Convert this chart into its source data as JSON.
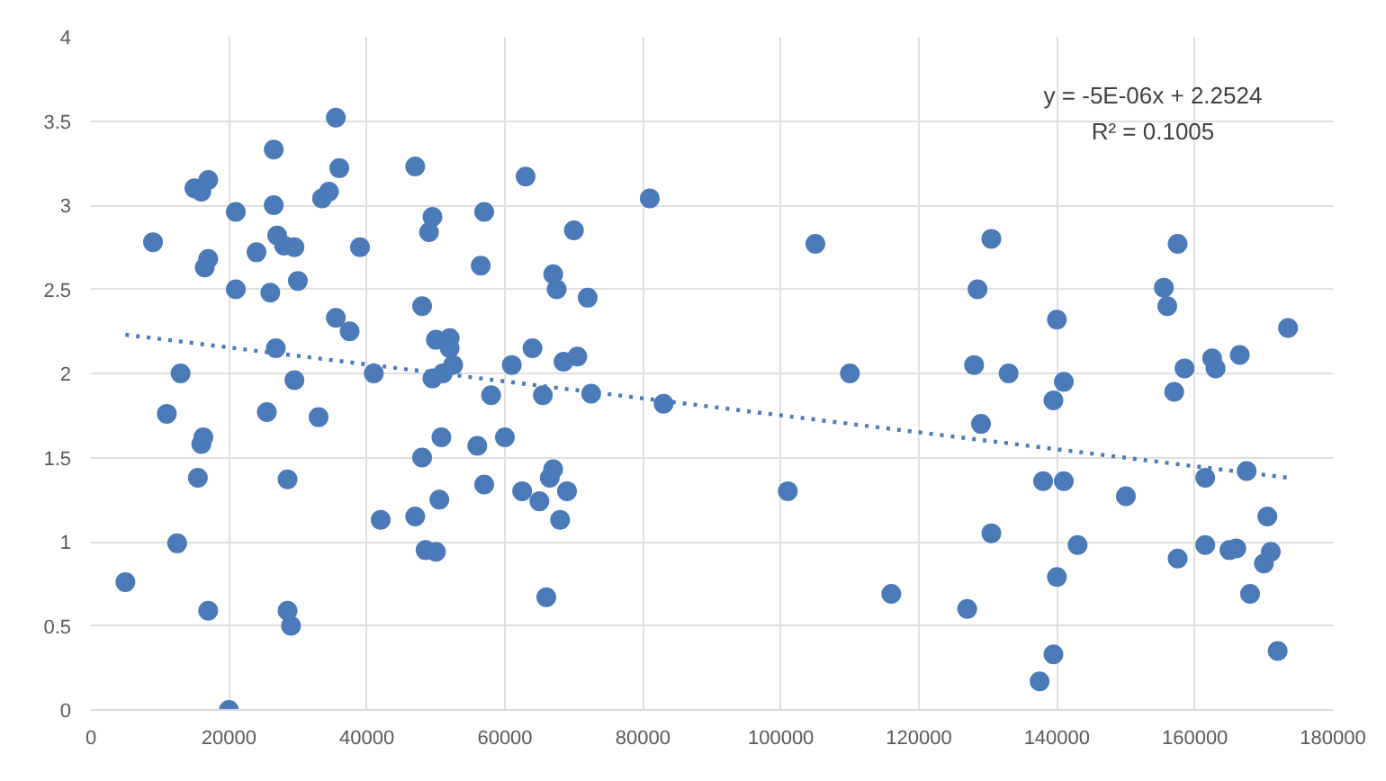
{
  "chart_data": {
    "type": "scatter",
    "xlim": [
      0,
      180000
    ],
    "ylim": [
      0,
      4
    ],
    "xticks": [
      0,
      20000,
      40000,
      60000,
      80000,
      100000,
      120000,
      140000,
      160000,
      180000
    ],
    "yticks": [
      0,
      0.5,
      1,
      1.5,
      2,
      2.5,
      3,
      3.5,
      4
    ],
    "grid": true,
    "annotations": [
      "y = -5E-06x + 2.2524",
      "R² = 0.1005"
    ],
    "series": [
      {
        "color": "#4a7ab8",
        "marker": "circle",
        "x": [
          5000,
          9000,
          11000,
          12500,
          13000,
          15000,
          15500,
          16000,
          16300,
          16000,
          17000,
          16500,
          17000,
          17000,
          20000,
          21000,
          21000,
          24000,
          25500,
          26000,
          26500,
          26500,
          27000,
          26800,
          28000,
          28500,
          28500,
          29000,
          29500,
          29500,
          30000,
          33000,
          33500,
          34500,
          35500,
          36000,
          35500,
          37500,
          39000,
          41000,
          42000,
          47000,
          47000,
          48000,
          48000,
          48500,
          49000,
          49500,
          49500,
          50000,
          50000,
          50800,
          50500,
          51000,
          52000,
          52000,
          52500,
          56000,
          56500,
          57000,
          57000,
          58000,
          60000,
          61000,
          62500,
          63000,
          64000,
          65000,
          65500,
          66000,
          66500,
          67000,
          67000,
          67500,
          68000,
          68500,
          69000,
          70000,
          70500,
          72000,
          72500,
          81000,
          83000,
          101000,
          105000,
          110000,
          116000,
          127000,
          128000,
          128500,
          129000,
          130500,
          130500,
          133000,
          137500,
          138000,
          139500,
          139500,
          140000,
          140000,
          141000,
          141000,
          143000,
          150000,
          155500,
          156000,
          157000,
          157500,
          157500,
          158500,
          161500,
          161500,
          162500,
          163000,
          165000,
          166000,
          166500,
          167500,
          168000,
          170000,
          170500,
          171000,
          172000,
          173500
        ],
        "values": [
          0.76,
          2.78,
          1.76,
          0.99,
          2.0,
          3.1,
          1.38,
          1.58,
          1.62,
          3.08,
          3.15,
          2.63,
          2.68,
          0.59,
          0.0,
          2.96,
          2.5,
          2.72,
          1.77,
          2.48,
          3.33,
          3.0,
          2.82,
          2.15,
          2.76,
          1.37,
          0.59,
          0.5,
          1.96,
          2.75,
          2.55,
          1.74,
          3.04,
          3.08,
          3.52,
          3.22,
          2.33,
          2.25,
          2.75,
          2.0,
          1.13,
          3.23,
          1.15,
          2.4,
          1.5,
          0.95,
          2.84,
          2.93,
          1.97,
          0.94,
          2.2,
          1.62,
          1.25,
          2.0,
          2.21,
          2.15,
          2.05,
          1.57,
          2.64,
          2.96,
          1.34,
          1.87,
          1.62,
          2.05,
          1.3,
          3.17,
          2.15,
          1.24,
          1.87,
          0.67,
          1.38,
          1.43,
          2.59,
          2.5,
          1.13,
          2.07,
          1.3,
          2.85,
          2.1,
          2.45,
          1.88,
          3.04,
          1.82,
          1.3,
          2.77,
          2.0,
          0.69,
          0.6,
          2.05,
          2.5,
          1.7,
          2.8,
          1.05,
          2.0,
          0.17,
          1.36,
          0.33,
          1.84,
          2.32,
          0.79,
          1.36,
          1.95,
          0.98,
          1.27,
          2.51,
          2.4,
          1.89,
          2.77,
          0.9,
          2.03,
          1.38,
          0.98,
          2.09,
          2.03,
          0.95,
          0.96,
          2.11,
          1.42,
          0.69,
          0.87,
          1.15,
          0.94,
          0.35,
          2.27
        ]
      },
      {
        "type": "line",
        "color": "#4a7ab8",
        "line_style": "dotted",
        "x": [
          5000,
          173500
        ],
        "values": [
          2.23,
          1.38
        ]
      }
    ]
  }
}
